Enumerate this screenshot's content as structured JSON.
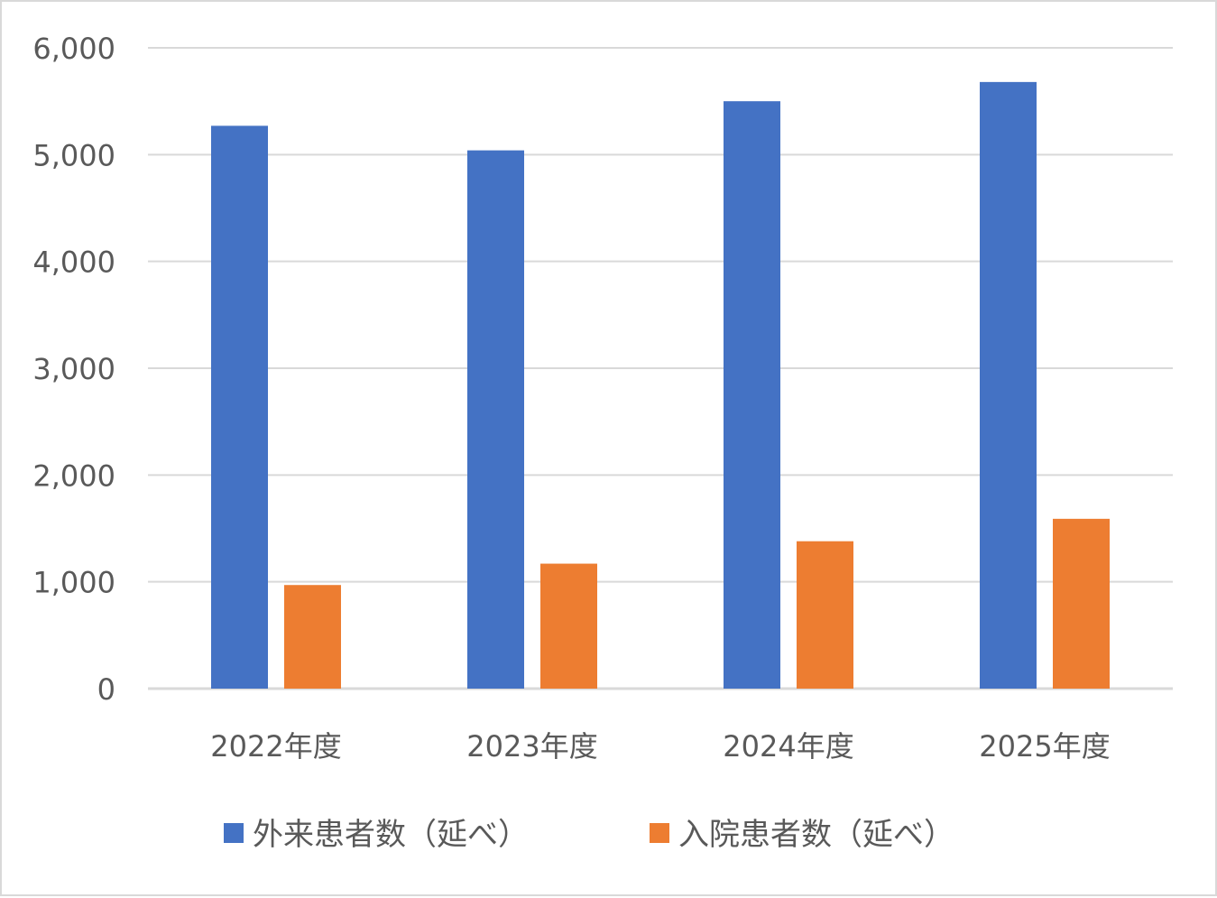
{
  "chart_data": {
    "type": "bar",
    "title": "",
    "xlabel": "",
    "ylabel": "",
    "categories": [
      "2022年度",
      "2023年度",
      "2024年度",
      "2025年度"
    ],
    "series": [
      {
        "name": "外来患者数（延べ）",
        "color": "#4472C4",
        "values": [
          5270,
          5040,
          5500,
          5680
        ]
      },
      {
        "name": "入院患者数（延べ）",
        "color": "#ED7D31",
        "values": [
          970,
          1170,
          1380,
          1590
        ]
      }
    ],
    "ylim": [
      0,
      6000
    ],
    "yticks": [
      "0",
      "1,000",
      "2,000",
      "3,000",
      "4,000",
      "5,000",
      "6,000"
    ],
    "ytick_values": [
      0,
      1000,
      2000,
      3000,
      4000,
      5000,
      6000
    ],
    "grid": true,
    "legend_position": "bottom"
  }
}
